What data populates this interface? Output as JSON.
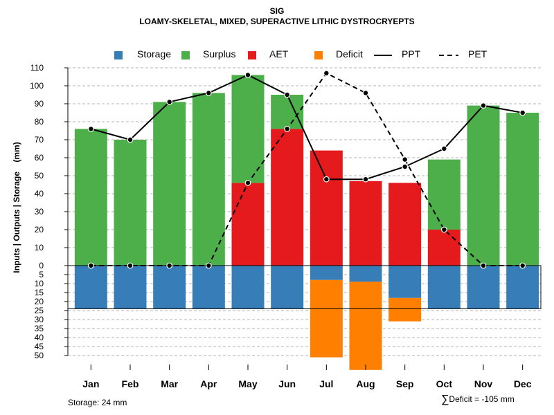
{
  "chart_data": {
    "type": "bar",
    "title": "SIG",
    "subtitle": "LOAMY-SKELETAL, MIXED, SUPERACTIVE LITHIC DYSTROCRYEPTS",
    "ylabel": "Inputs | Outputs | Storage    (mm)",
    "xlabel": "",
    "categories": [
      "Jan",
      "Feb",
      "Mar",
      "Apr",
      "May",
      "Jun",
      "Jul",
      "Aug",
      "Sep",
      "Oct",
      "Nov",
      "Dec"
    ],
    "ylim": [
      -50,
      110
    ],
    "y_ticks_upper": [
      0,
      10,
      20,
      30,
      40,
      50,
      60,
      70,
      80,
      90,
      100,
      110
    ],
    "y_ticks_lower": [
      5,
      10,
      15,
      20,
      25,
      30,
      35,
      40,
      45,
      50
    ],
    "series": [
      {
        "name": "Storage",
        "color": "#377eb8",
        "values": [
          24,
          24,
          24,
          24,
          24,
          24,
          8,
          9,
          18,
          24,
          24,
          24
        ]
      },
      {
        "name": "Surplus",
        "color": "#4daf4a",
        "values": [
          76,
          70,
          91,
          96,
          60,
          19,
          0,
          0,
          0,
          39,
          89,
          85
        ]
      },
      {
        "name": "AET",
        "color": "#e41a1c",
        "values": [
          0,
          0,
          0,
          0,
          46,
          76,
          64,
          47,
          46,
          20,
          0,
          0
        ]
      },
      {
        "name": "Deficit",
        "color": "#ff7f00",
        "values": [
          0,
          0,
          0,
          0,
          0,
          0,
          43,
          49,
          13,
          0,
          0,
          0
        ]
      },
      {
        "name": "PPT",
        "color": "#000000",
        "style": "solid",
        "values": [
          76,
          70,
          91,
          96,
          106,
          95,
          48,
          48,
          55,
          65,
          89,
          85
        ]
      },
      {
        "name": "PET",
        "color": "#000000",
        "style": "dashed",
        "values": [
          0,
          0,
          0,
          0,
          46,
          76,
          107,
          96,
          59,
          20,
          0,
          0
        ]
      }
    ],
    "storage_capacity": 24,
    "storage_note": "Storage: 24 mm",
    "deficit_sum_label": "Deficit = -105 mm",
    "sigma_symbol": "∑",
    "legend": [
      "Storage",
      "Surplus",
      "AET",
      "Deficit",
      "PPT",
      "PET"
    ],
    "legend_position": "top",
    "grid": true
  }
}
